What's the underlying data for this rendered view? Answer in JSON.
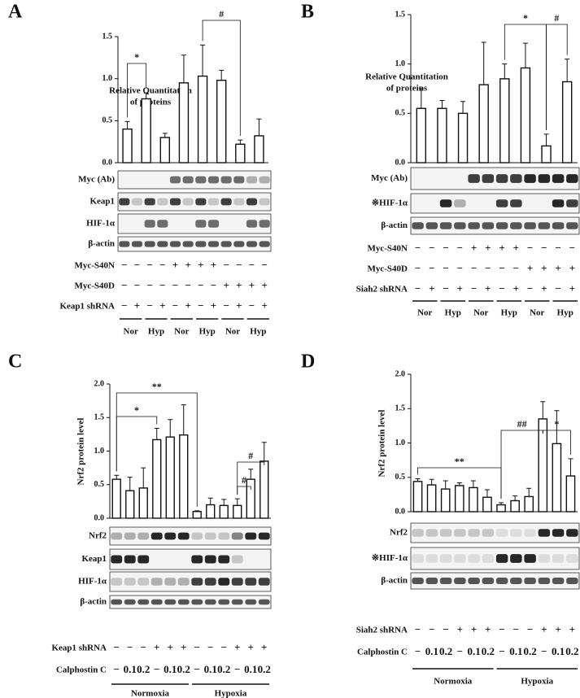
{
  "chart_data": [
    {
      "type": "bar",
      "ylabel": [
        "Relative Quantitation",
        "of proteins"
      ],
      "values": [
        0.4,
        0.76,
        0.3,
        0.95,
        1.03,
        0.98,
        0.22,
        0.32
      ],
      "errors": [
        0.09,
        0.07,
        0.05,
        0.33,
        0.37,
        0.12,
        0.05,
        0.2
      ],
      "color": "#ffffff",
      "ylim": [
        0,
        1.5
      ],
      "yticks": [
        {
          "value": 0,
          "label": "0.0"
        },
        {
          "value": 0.5,
          "label": "0.5"
        },
        {
          "value": 1,
          "label": "1.0"
        },
        {
          "value": 1.5,
          "label": "1.5"
        }
      ],
      "annotations": [
        "*",
        "#"
      ]
    },
    {
      "type": "bar",
      "ylabel": [
        "Relative Quantitation",
        "of proteins"
      ],
      "values": [
        0.55,
        0.55,
        0.5,
        0.79,
        0.85,
        0.96,
        0.17,
        0.82
      ],
      "errors": [
        0.2,
        0.08,
        0.12,
        0.43,
        0.15,
        0.25,
        0.12,
        0.23
      ],
      "color": "#ffffff",
      "ylim": [
        0,
        1.5
      ],
      "yticks": [
        {
          "value": 0,
          "label": "0.0"
        },
        {
          "value": 0.5,
          "label": "0.5"
        },
        {
          "value": 1,
          "label": "1.0"
        },
        {
          "value": 1.5,
          "label": "1.5"
        }
      ],
      "annotations": [
        "*",
        "#"
      ]
    },
    {
      "type": "bar",
      "ylabel": "Nrf2 protein level",
      "values": [
        0.58,
        0.41,
        0.45,
        1.17,
        1.21,
        1.24,
        0.1,
        0.2,
        0.19,
        0.19,
        0.58,
        0.85
      ],
      "errors": [
        0.06,
        0.2,
        0.3,
        0.17,
        0.26,
        0.45,
        0.01,
        0.1,
        0.09,
        0.1,
        0.15,
        0.28
      ],
      "color": "#ffffff",
      "ylim": [
        0,
        2
      ],
      "yticks": [
        {
          "value": 0,
          "label": "0.0"
        },
        {
          "value": 0.5,
          "label": "0.5"
        },
        {
          "value": 1,
          "label": "1.0"
        },
        {
          "value": 1.5,
          "label": "1.5"
        },
        {
          "value": 2,
          "label": "2.0"
        }
      ],
      "annotations": [
        "*",
        "**",
        "#",
        "#"
      ]
    },
    {
      "type": "bar",
      "ylabel": "Nrf2 protein level",
      "values": [
        0.44,
        0.39,
        0.33,
        0.38,
        0.35,
        0.21,
        0.1,
        0.16,
        0.22,
        1.35,
        0.99,
        0.52
      ],
      "errors": [
        0.04,
        0.08,
        0.12,
        0.04,
        0.1,
        0.11,
        0.03,
        0.07,
        0.12,
        0.25,
        0.48,
        0.25
      ],
      "color": "#ffffff",
      "ylim": [
        0,
        2
      ],
      "yticks": [
        {
          "value": 0,
          "label": "0.0"
        },
        {
          "value": 0.5,
          "label": "0.5"
        },
        {
          "value": 1,
          "label": "1.0"
        },
        {
          "value": 1.5,
          "label": "1.5"
        },
        {
          "value": 2,
          "label": "2.0"
        }
      ],
      "annotations": [
        "**",
        "##",
        "*"
      ]
    }
  ],
  "panels": [
    {
      "letter": "A",
      "blots": [
        "Myc (Ab)",
        "Keap1",
        "HIF-1α",
        "β-actin"
      ],
      "conditions": [
        {
          "name": "Myc-S40N",
          "signs": [
            "−",
            "−",
            "−",
            "−",
            "+",
            "+",
            "+",
            "+",
            "−",
            "−",
            "−",
            "−"
          ]
        },
        {
          "name": "Myc-S40D",
          "signs": [
            "−",
            "−",
            "−",
            "−",
            "−",
            "−",
            "−",
            "−",
            "+",
            "+",
            "+",
            "+"
          ]
        },
        {
          "name": "Keap1 shRNA",
          "signs": [
            "−",
            "+",
            "−",
            "+",
            "−",
            "+",
            "−",
            "+",
            "−",
            "+",
            "−",
            "+"
          ]
        }
      ],
      "groups": [
        "Nor",
        "Hyp",
        "Nor",
        "Hyp",
        "Nor",
        "Hyp"
      ]
    },
    {
      "letter": "B",
      "blots": [
        "Myc (Ab)",
        "※HIF-1α",
        "β-actin"
      ],
      "conditions": [
        {
          "name": "Myc-S40N",
          "signs": [
            "−",
            "−",
            "−",
            "−",
            "+",
            "+",
            "+",
            "+",
            "−",
            "−",
            "−",
            "−"
          ]
        },
        {
          "name": "Myc-S40D",
          "signs": [
            "−",
            "−",
            "−",
            "−",
            "−",
            "−",
            "−",
            "−",
            "+",
            "+",
            "+",
            "+"
          ]
        },
        {
          "name": "Siah2 shRNA",
          "signs": [
            "−",
            "+",
            "−",
            "+",
            "−",
            "+",
            "−",
            "+",
            "−",
            "+",
            "−",
            "+"
          ]
        }
      ],
      "groups": [
        "Nor",
        "Hyp",
        "Nor",
        "Hyp",
        "Nor",
        "Hyp"
      ]
    },
    {
      "letter": "C",
      "blots": [
        "Nrf2",
        "Keap1",
        "HIF-1α",
        "β-actin"
      ],
      "conditions": [
        {
          "name": "Keap1 shRNA",
          "signs": [
            "−",
            "−",
            "−",
            "+",
            "+",
            "+",
            "−",
            "−",
            "−",
            "+",
            "+",
            "+"
          ]
        },
        {
          "name": "Calphostin C",
          "signs": [
            "−",
            "0.1",
            "0.2",
            "−",
            "0.1",
            "0.2",
            "−",
            "0.1",
            "0.2",
            "−",
            "0.1",
            "0.2"
          ]
        }
      ],
      "groups": [
        "Normoxia",
        "Hypoxia"
      ]
    },
    {
      "letter": "D",
      "blots": [
        "Nrf2",
        "※HIF-1α",
        "β-actin"
      ],
      "conditions": [
        {
          "name": "Siah2 shRNA",
          "signs": [
            "−",
            "−",
            "−",
            "+",
            "+",
            "+",
            "−",
            "−",
            "−",
            "+",
            "+",
            "+"
          ]
        },
        {
          "name": "Calphostin C",
          "signs": [
            "−",
            "0.1",
            "0.2",
            "−",
            "0.1",
            "0.2",
            "−",
            "0.1",
            "0.2",
            "−",
            "0.1",
            "0.2"
          ]
        }
      ],
      "groups": [
        "Normoxia",
        "Hypoxia"
      ]
    }
  ]
}
